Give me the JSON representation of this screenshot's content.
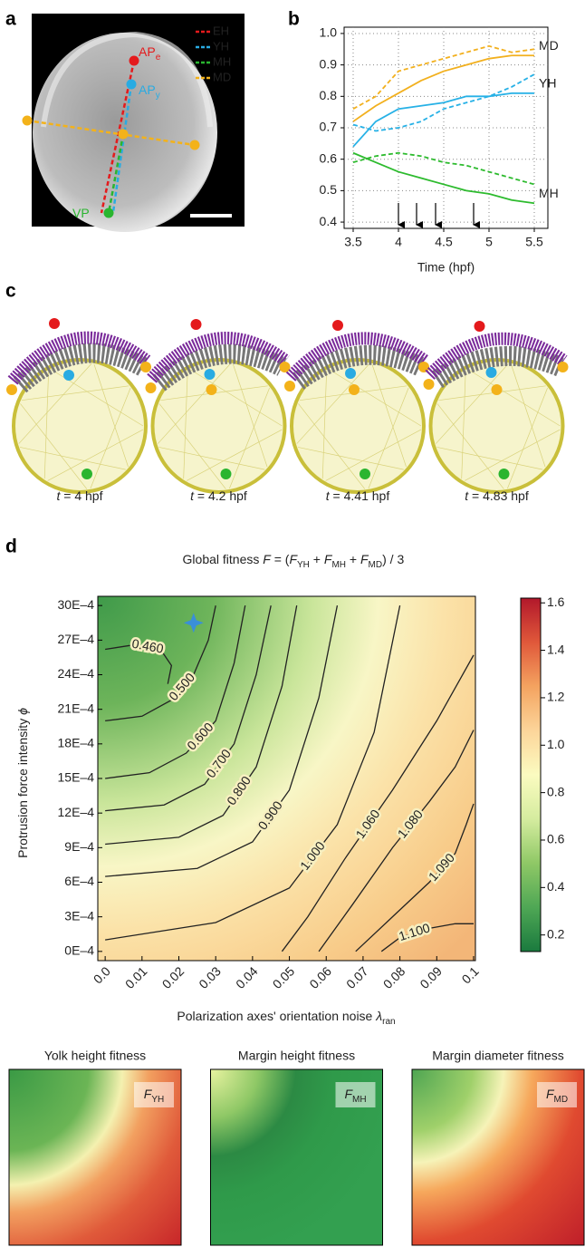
{
  "panel_labels": [
    "a",
    "b",
    "c",
    "d"
  ],
  "panel_a": {
    "markers": [
      {
        "main": "AP",
        "sub": "e",
        "color": "#e41a1c"
      },
      {
        "main": "AP",
        "sub": "y",
        "color": "#29abe2"
      },
      {
        "main": "VP",
        "color": "#2ab52f"
      }
    ],
    "legend": [
      {
        "name": "EH",
        "color": "#e41a1c"
      },
      {
        "name": "YH",
        "color": "#29abe2"
      },
      {
        "name": "MH",
        "color": "#2ab52f"
      },
      {
        "name": "MD",
        "color": "#f3b21a"
      }
    ]
  },
  "chart_data": [
    {
      "type": "line",
      "xlabel": "Time (hpf)",
      "x": [
        3.5,
        3.75,
        4,
        4.25,
        4.5,
        4.75,
        5,
        5.25,
        5.5
      ],
      "xlim": [
        3.4,
        5.65
      ],
      "ylim": [
        0.38,
        1.02
      ],
      "xticks": [
        3.5,
        4,
        4.5,
        5,
        5.5
      ],
      "yticks": [
        0.4,
        0.5,
        0.6,
        0.7,
        0.8,
        0.9,
        {
          "value": 1,
          "label": "1.0"
        }
      ],
      "grid": true,
      "arrows_x": [
        4,
        4.2,
        4.41,
        4.83
      ],
      "series": [
        {
          "name": "MD",
          "color": "#f2b01e",
          "values": [
            0.72,
            0.77,
            0.81,
            0.85,
            0.88,
            0.9,
            0.92,
            0.93,
            0.93
          ]
        },
        {
          "color": "#f2b01e",
          "dash": true,
          "values": [
            0.76,
            0.8,
            0.88,
            0.9,
            0.92,
            0.94,
            0.96,
            0.94,
            0.95
          ]
        },
        {
          "name": "YH",
          "color": "#27b1e6",
          "values": [
            0.64,
            0.72,
            0.76,
            0.77,
            0.78,
            0.8,
            0.8,
            0.81,
            0.81
          ]
        },
        {
          "color": "#27b1e6",
          "dash": true,
          "values": [
            0.71,
            0.69,
            0.7,
            0.72,
            0.76,
            0.78,
            0.8,
            0.83,
            0.87
          ]
        },
        {
          "name": "MH",
          "color": "#2dbb2e",
          "values": [
            0.62,
            0.59,
            0.56,
            0.54,
            0.52,
            0.5,
            0.49,
            0.47,
            0.46
          ]
        },
        {
          "color": "#2dbb2e",
          "dash": true,
          "values": [
            0.59,
            0.61,
            0.62,
            0.61,
            0.59,
            0.58,
            0.56,
            0.54,
            0.52
          ]
        }
      ]
    },
    {
      "type": "contour",
      "title_parts": [
        "Global fitness ",
        "F",
        " = (",
        "F",
        "YH",
        " + ",
        "F",
        "MH",
        " + ",
        "F",
        "MD",
        ") / 3"
      ],
      "xlabel": "Polarization axes' orientation noise ",
      "xlabel_symbol": "λ",
      "xlabel_sub": "ran",
      "ylabel": "Protrusion force intensity ",
      "ylabel_symbol": "ϕ",
      "xlim": [
        -0.002,
        0.1005
      ],
      "ylim": [
        -8e-05,
        0.00308
      ],
      "xticks": [
        {
          "value": 0,
          "label": "0.0"
        },
        0.01,
        0.02,
        0.03,
        0.04,
        0.05,
        0.06,
        0.07,
        0.08,
        0.09,
        0.1
      ],
      "yticks": [
        {
          "value": 0,
          "label": "0E–4"
        },
        {
          "value": 0.0003,
          "label": "3E–4"
        },
        {
          "value": 0.0006,
          "label": "6E–4"
        },
        {
          "value": 0.0009,
          "label": "9E–4"
        },
        {
          "value": 0.0012,
          "label": "12E–4"
        },
        {
          "value": 0.0015,
          "label": "15E–4"
        },
        {
          "value": 0.0018,
          "label": "18E–4"
        },
        {
          "value": 0.0021,
          "label": "21E–4"
        },
        {
          "value": 0.0024,
          "label": "24E–4"
        },
        {
          "value": 0.0027,
          "label": "27E–4"
        },
        {
          "value": 0.003,
          "label": "30E–4"
        }
      ],
      "contours": [
        {
          "level": 0.46,
          "label": "0.460",
          "x": [
            0,
            0.008,
            0.015,
            0.018,
            0.017
          ],
          "y": [
            0.00262,
            0.00266,
            0.00262,
            0.00248,
            0.00232
          ]
        },
        {
          "level": 0.5,
          "label": "0.500",
          "x": [
            0,
            0.01,
            0.018,
            0.024,
            0.028,
            0.03
          ],
          "y": [
            0.002,
            0.00204,
            0.00218,
            0.0024,
            0.0027,
            0.003
          ]
        },
        {
          "level": 0.6,
          "label": "0.600",
          "x": [
            0,
            0.012,
            0.022,
            0.03,
            0.035,
            0.038
          ],
          "y": [
            0.0015,
            0.00155,
            0.00172,
            0.002,
            0.0025,
            0.003
          ]
        },
        {
          "level": 0.7,
          "label": "0.700",
          "x": [
            0,
            0.016,
            0.027,
            0.035,
            0.041,
            0.045
          ],
          "y": [
            0.00122,
            0.00127,
            0.00145,
            0.0018,
            0.0024,
            0.003
          ]
        },
        {
          "level": 0.8,
          "label": "0.800",
          "x": [
            0,
            0.02,
            0.032,
            0.041,
            0.048,
            0.052
          ],
          "y": [
            0.00093,
            0.00099,
            0.00118,
            0.0016,
            0.0023,
            0.003
          ]
        },
        {
          "level": 0.9,
          "label": "0.900",
          "x": [
            0,
            0.025,
            0.04,
            0.05,
            0.058,
            0.063
          ],
          "y": [
            0.00065,
            0.00072,
            0.00095,
            0.0014,
            0.0022,
            0.003
          ]
        },
        {
          "level": 1,
          "label": "1.000",
          "x": [
            0,
            0.03,
            0.05,
            0.063,
            0.073,
            0.08
          ],
          "y": [
            0.0001,
            0.00025,
            0.00055,
            0.0011,
            0.0019,
            0.003
          ]
        },
        {
          "level": 1.06,
          "label": "1.060",
          "x": [
            0.048,
            0.055,
            0.065,
            0.078,
            0.09,
            0.1
          ],
          "y": [
            0,
            0.0003,
            0.0008,
            0.0014,
            0.002,
            0.00257
          ]
        },
        {
          "level": 1.08,
          "label": "1.080",
          "x": [
            0.058,
            0.067,
            0.078,
            0.088,
            0.095,
            0.1
          ],
          "y": [
            0,
            0.0004,
            0.0009,
            0.0013,
            0.0016,
            0.00192
          ]
        },
        {
          "level": 1.09,
          "label": "1.090",
          "x": [
            0.068,
            0.078,
            0.088,
            0.095,
            0.098,
            0.1
          ],
          "y": [
            0,
            0.0003,
            0.0006,
            0.00085,
            0.0011,
            0.00128
          ]
        },
        {
          "level": 1.1,
          "label": "1.100",
          "x": [
            0.075,
            0.08,
            0.088,
            0.095,
            0.1
          ],
          "y": [
            0,
            0.00012,
            0.0002,
            0.00024,
            0.00024
          ]
        }
      ],
      "star": {
        "x": 0.024,
        "y": 0.00285,
        "color": "#3a8fd8"
      },
      "colorbar": {
        "clim": [
          0.13,
          1.62
        ],
        "ticks": [
          0.2,
          0.4,
          0.6,
          0.8,
          {
            "value": 1,
            "label": "1.0"
          },
          1.2,
          1.4,
          1.6
        ],
        "colors": [
          "#1a7a3e",
          "#4fa755",
          "#8fc866",
          "#d5ec9f",
          "#fbfbc0",
          "#fcd59a",
          "#f4a360",
          "#e0583a",
          "#b2182b"
        ]
      }
    }
  ],
  "panel_c": {
    "time_symbol": "t",
    "captions": [
      " = 4 hpf",
      " = 4.2 hpf",
      " = 4.41 hpf",
      " = 4.83 hpf"
    ]
  },
  "bottom_maps": [
    {
      "title": "Yolk height fitness",
      "label": "F",
      "sub": "YH"
    },
    {
      "title": "Margin height fitness",
      "label": "F",
      "sub": "MH"
    },
    {
      "title": "Margin diameter fitness",
      "label": "F",
      "sub": "MD"
    }
  ]
}
